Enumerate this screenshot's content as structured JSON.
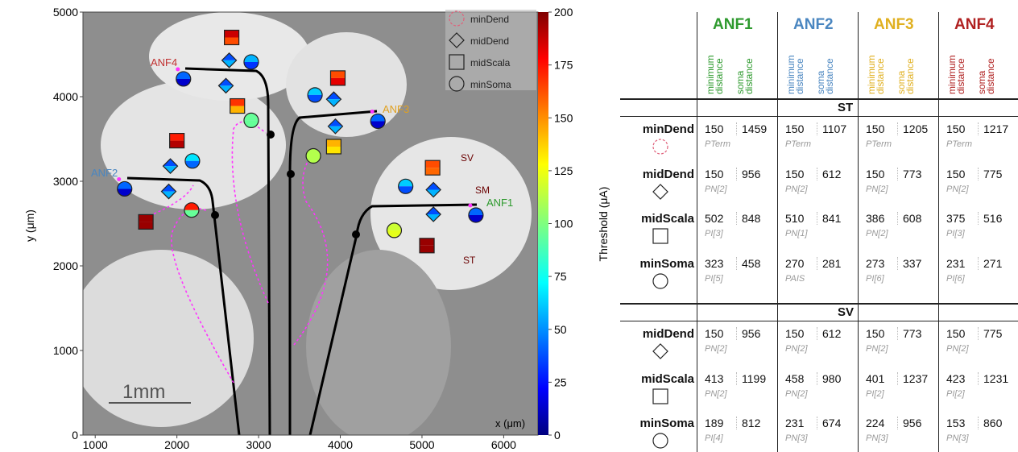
{
  "chart_data": {
    "type": "scatter",
    "xlabel": "x (μm)",
    "ylabel": "y (μm)",
    "xlim": [
      850,
      6420
    ],
    "ylim": [
      0,
      5000
    ],
    "xticks": [
      1000,
      2000,
      3000,
      4000,
      5000,
      6000
    ],
    "yticks": [
      0,
      1000,
      2000,
      3000,
      4000,
      5000
    ],
    "colorbar": {
      "label": "Threshold (μA)",
      "lim": [
        0,
        200
      ],
      "ticks": [
        0,
        25,
        50,
        75,
        100,
        125,
        150,
        175,
        200
      ],
      "colormap": "jet"
    },
    "legend": "upper right",
    "annotations": [
      "ANF4",
      "ANF2",
      "ANF3",
      "ANF1",
      "SV",
      "SM",
      "ST",
      "1mm"
    ],
    "series": [
      {
        "name": "minDend",
        "shape": "circle",
        "color": "#e0607a",
        "x": [
          2080,
          1360,
          4460,
          5660
        ],
        "y": [
          4210,
          2910,
          3710,
          2600
        ],
        "top": [
          45,
          45,
          45,
          45
        ],
        "bottom": [
          15,
          15,
          15,
          15
        ]
      },
      {
        "name": "midDend",
        "shape": "diamond",
        "color": "#222222",
        "x": [
          2640,
          2600,
          1920,
          1900,
          3920,
          3940,
          5140,
          5140
        ],
        "y": [
          4430,
          4130,
          3180,
          2880,
          3970,
          3650,
          2900,
          2610
        ],
        "top": [
          40,
          40,
          40,
          40,
          40,
          40,
          40,
          40
        ],
        "bottom": [
          60,
          60,
          60,
          60,
          60,
          60,
          60,
          60
        ]
      },
      {
        "name": "midScala",
        "shape": "square",
        "color": "#222222",
        "x": [
          2670,
          2740,
          2000,
          1620,
          3970,
          3920,
          5130,
          5060
        ],
        "y": [
          4700,
          3890,
          3480,
          2520,
          4220,
          3410,
          3160,
          2240
        ],
        "top": [
          185,
          165,
          170,
          195,
          160,
          140,
          160,
          195
        ],
        "bottom": [
          160,
          140,
          190,
          195,
          180,
          130,
          155,
          195
        ]
      },
      {
        "name": "minSoma",
        "shape": "circle",
        "color": "#222222",
        "x": [
          2910,
          2910,
          2190,
          2180,
          3690,
          3670,
          4800,
          4660
        ],
        "y": [
          4410,
          3720,
          3240,
          2660,
          4020,
          3300,
          2940,
          2420
        ],
        "top": [
          60,
          95,
          70,
          170,
          65,
          110,
          65,
          115
        ],
        "bottom": [
          35,
          95,
          45,
          95,
          40,
          110,
          40,
          120
        ]
      }
    ]
  },
  "table": {
    "columns": [
      {
        "title": "ANF1",
        "color": "#2e9a2e",
        "subheaders": [
          "minimum distance",
          "soma distance"
        ]
      },
      {
        "title": "ANF2",
        "color": "#4a86c0",
        "subheaders": [
          "minimum distance",
          "soma distance"
        ]
      },
      {
        "title": "ANF3",
        "color": "#e0b020",
        "subheaders": [
          "minimum distance",
          "soma distance"
        ]
      },
      {
        "title": "ANF4",
        "color": "#b02020",
        "subheaders": [
          "minimum distance",
          "soma distance"
        ]
      }
    ],
    "sections": [
      {
        "title": "ST",
        "rows": [
          {
            "name": "minDend",
            "shape": "dashed-circle",
            "cells": [
              [
                150,
                1459,
                "PTerm"
              ],
              [
                150,
                1107,
                "PTerm"
              ],
              [
                150,
                1205,
                "PTerm"
              ],
              [
                150,
                1217,
                "PTerm"
              ]
            ]
          },
          {
            "name": "midDend",
            "shape": "diamond",
            "cells": [
              [
                150,
                956,
                "PN[2]"
              ],
              [
                150,
                612,
                "PN[2]"
              ],
              [
                150,
                773,
                "PN[2]"
              ],
              [
                150,
                775,
                "PN[2]"
              ]
            ]
          },
          {
            "name": "midScala",
            "shape": "square",
            "cells": [
              [
                502,
                848,
                "PI[3]"
              ],
              [
                510,
                841,
                "PN[1]"
              ],
              [
                386,
                608,
                "PN[2]"
              ],
              [
                375,
                516,
                "PI[3]"
              ]
            ]
          },
          {
            "name": "minSoma",
            "shape": "circle",
            "cells": [
              [
                323,
                458,
                "PI[5]"
              ],
              [
                270,
                281,
                "PAIS"
              ],
              [
                273,
                337,
                "PI[6]"
              ],
              [
                231,
                271,
                "PI[6]"
              ]
            ]
          }
        ]
      },
      {
        "title": "SV",
        "rows": [
          {
            "name": "midDend",
            "shape": "diamond",
            "cells": [
              [
                150,
                956,
                "PN[2]"
              ],
              [
                150,
                612,
                "PN[2]"
              ],
              [
                150,
                773,
                "PN[2]"
              ],
              [
                150,
                775,
                "PN[2]"
              ]
            ]
          },
          {
            "name": "midScala",
            "shape": "square",
            "cells": [
              [
                413,
                1199,
                "PN[2]"
              ],
              [
                458,
                980,
                "PN[2]"
              ],
              [
                401,
                1237,
                "PI[2]"
              ],
              [
                423,
                1231,
                "PI[2]"
              ]
            ]
          },
          {
            "name": "minSoma",
            "shape": "circle",
            "cells": [
              [
                189,
                812,
                "PI[4]"
              ],
              [
                231,
                674,
                "PN[3]"
              ],
              [
                224,
                956,
                "PN[3]"
              ],
              [
                153,
                860,
                "PN[3]"
              ]
            ]
          }
        ]
      }
    ]
  }
}
